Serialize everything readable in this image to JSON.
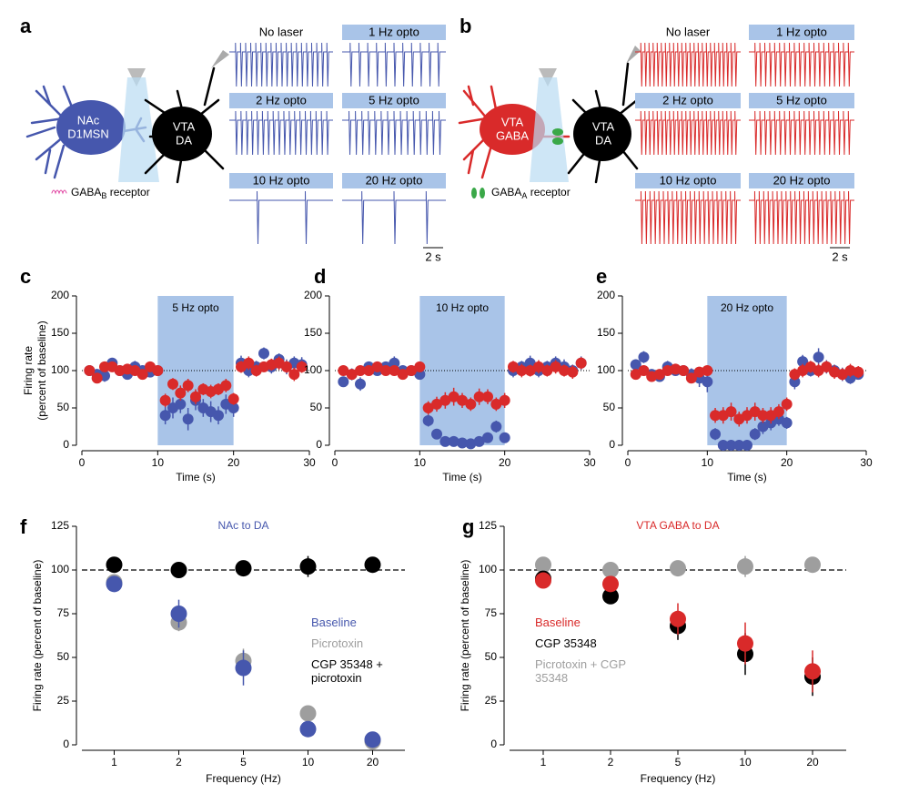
{
  "diagrams": [
    {
      "letter": "a",
      "neurons": [
        [
          "NAc",
          "D1MSN"
        ],
        [
          "VTA",
          "DA"
        ]
      ],
      "receptor": {
        "name": "GABA",
        "sub": "B",
        "suffix": " receptor"
      },
      "traces": [
        "No laser",
        "1 Hz opto",
        "2 Hz opto",
        "5 Hz opto",
        "10 Hz opto",
        "20 Hz opto"
      ],
      "scale_bar": "2 s"
    },
    {
      "letter": "b",
      "neurons": [
        [
          "VTA",
          "GABA"
        ],
        [
          "VTA",
          "DA"
        ]
      ],
      "receptor": {
        "name": "GABA",
        "sub": "A",
        "suffix": " receptor"
      },
      "traces": [
        "No laser",
        "1 Hz opto",
        "2 Hz opto",
        "5 Hz opto",
        "10 Hz opto",
        "20 Hz opto"
      ],
      "scale_bar": "2 s"
    }
  ],
  "chart_data": [
    {
      "type": "scatter",
      "panel": "c",
      "shade": [
        10,
        20
      ],
      "shade_label": "5 Hz opto",
      "hline": 100,
      "ylabel": [
        "Firing rate",
        "(percent of baseline)"
      ],
      "xlabel": "Time (s)",
      "xlim": [
        0,
        30
      ],
      "xticks": [
        0,
        10,
        20,
        30
      ],
      "ylim": [
        0,
        200
      ],
      "yticks": [
        0,
        50,
        100,
        150,
        200
      ],
      "x": [
        1,
        2,
        3,
        4,
        5,
        6,
        7,
        8,
        9,
        10,
        11,
        12,
        13,
        14,
        15,
        16,
        17,
        18,
        19,
        20,
        21,
        22,
        23,
        24,
        25,
        26,
        27,
        28,
        29
      ],
      "series": [
        {
          "color": "#4657ad",
          "values": [
            100,
            95,
            93,
            110,
            100,
            95,
            105,
            100,
            98,
            100,
            40,
            50,
            55,
            35,
            60,
            50,
            45,
            40,
            55,
            50,
            110,
            100,
            105,
            123,
            105,
            115,
            105,
            110,
            108
          ],
          "errors": [
            5,
            6,
            8,
            7,
            5,
            6,
            8,
            6,
            5,
            6,
            12,
            14,
            12,
            15,
            13,
            12,
            14,
            12,
            13,
            12,
            10,
            9,
            8,
            8,
            9,
            8,
            10,
            9,
            10
          ]
        },
        {
          "color": "#d92a2a",
          "values": [
            100,
            90,
            105,
            105,
            100,
            102,
            100,
            95,
            105,
            100,
            60,
            82,
            70,
            80,
            65,
            75,
            72,
            75,
            80,
            62,
            105,
            110,
            100,
            105,
            108,
            110,
            105,
            95,
            105
          ],
          "errors": [
            5,
            5,
            6,
            5,
            6,
            5,
            5,
            6,
            5,
            5,
            9,
            8,
            10,
            9,
            10,
            8,
            9,
            8,
            9,
            8,
            8,
            9,
            8,
            7,
            8,
            9,
            8,
            9,
            8
          ]
        }
      ]
    },
    {
      "type": "scatter",
      "panel": "d",
      "shade": [
        10,
        20
      ],
      "shade_label": "10 Hz opto",
      "hline": 100,
      "xlabel": "Time (s)",
      "xlim": [
        0,
        30
      ],
      "xticks": [
        0,
        10,
        20,
        30
      ],
      "ylim": [
        0,
        200
      ],
      "yticks": [
        0,
        50,
        100,
        150,
        200
      ],
      "x": [
        1,
        2,
        3,
        4,
        5,
        6,
        7,
        8,
        9,
        10,
        11,
        12,
        13,
        14,
        15,
        16,
        17,
        18,
        19,
        20,
        21,
        22,
        23,
        24,
        25,
        26,
        27,
        28,
        29
      ],
      "series": [
        {
          "color": "#4657ad",
          "values": [
            85,
            95,
            82,
            105,
            100,
            105,
            110,
            100,
            100,
            95,
            33,
            15,
            5,
            5,
            3,
            2,
            5,
            10,
            25,
            10,
            100,
            105,
            110,
            100,
            105,
            110,
            105,
            100,
            110
          ],
          "errors": [
            6,
            8,
            9,
            6,
            5,
            7,
            9,
            6,
            5,
            6,
            8,
            6,
            3,
            3,
            2,
            2,
            3,
            5,
            8,
            5,
            9,
            8,
            10,
            9,
            8,
            9,
            10,
            8,
            9
          ]
        },
        {
          "color": "#d92a2a",
          "values": [
            100,
            95,
            100,
            100,
            105,
            100,
            100,
            95,
            100,
            105,
            50,
            55,
            60,
            65,
            60,
            55,
            65,
            65,
            55,
            60,
            105,
            100,
            100,
            105,
            100,
            105,
            100,
            98,
            110
          ],
          "errors": [
            5,
            6,
            5,
            5,
            6,
            5,
            5,
            6,
            5,
            6,
            9,
            10,
            11,
            12,
            10,
            9,
            11,
            10,
            9,
            10,
            8,
            9,
            8,
            9,
            8,
            9,
            8,
            9,
            8
          ]
        }
      ]
    },
    {
      "type": "scatter",
      "panel": "e",
      "shade": [
        10,
        20
      ],
      "shade_label": "20 Hz opto",
      "hline": 100,
      "xlabel": "Time (s)",
      "xlim": [
        0,
        30
      ],
      "xticks": [
        0,
        10,
        20,
        30
      ],
      "ylim": [
        0,
        200
      ],
      "yticks": [
        0,
        50,
        100,
        150,
        200
      ],
      "x": [
        1,
        2,
        3,
        4,
        5,
        6,
        7,
        8,
        9,
        10,
        11,
        12,
        13,
        14,
        15,
        16,
        17,
        18,
        19,
        20,
        21,
        22,
        23,
        24,
        25,
        26,
        27,
        28,
        29
      ],
      "series": [
        {
          "color": "#4657ad",
          "values": [
            108,
            118,
            95,
            92,
            105,
            100,
            100,
            95,
            90,
            85,
            15,
            0,
            0,
            0,
            0,
            15,
            25,
            30,
            35,
            30,
            85,
            112,
            100,
            118,
            105,
            100,
            95,
            90,
            95
          ],
          "errors": [
            7,
            8,
            6,
            7,
            8,
            6,
            7,
            8,
            12,
            14,
            8,
            1,
            1,
            1,
            1,
            8,
            10,
            10,
            9,
            8,
            10,
            9,
            8,
            12,
            9,
            8,
            9,
            8,
            7
          ]
        },
        {
          "color": "#d92a2a",
          "values": [
            95,
            100,
            92,
            95,
            100,
            102,
            100,
            90,
            98,
            100,
            40,
            40,
            45,
            35,
            40,
            45,
            40,
            40,
            45,
            55,
            95,
            100,
            105,
            100,
            105,
            98,
            95,
            100,
            98
          ],
          "errors": [
            5,
            6,
            5,
            5,
            6,
            5,
            5,
            6,
            5,
            6,
            10,
            11,
            12,
            10,
            11,
            12,
            10,
            11,
            10,
            9,
            8,
            9,
            8,
            9,
            8,
            9,
            8,
            9,
            8
          ]
        }
      ]
    },
    {
      "type": "dot",
      "panel": "f",
      "title": "NAc to DA",
      "title_color": "#4657ad",
      "hline": 100,
      "ylabel": "Firing rate (percent of baseline)",
      "xlabel": "Frequency (Hz)",
      "categories": [
        "1",
        "2",
        "5",
        "10",
        "20"
      ],
      "ylim": [
        0,
        125
      ],
      "yticks": [
        0,
        25,
        50,
        75,
        100,
        125
      ],
      "series": [
        {
          "name": "Baseline",
          "color": "#4657ad",
          "values": [
            92,
            75,
            44,
            9,
            3
          ],
          "errors": [
            3,
            8,
            10,
            2,
            1
          ]
        },
        {
          "name": "Picrotoxin",
          "color": "#9e9e9e",
          "values": [
            93,
            70,
            48,
            18,
            2
          ],
          "errors": [
            2,
            5,
            7,
            3,
            1
          ]
        },
        {
          "name": "CGP 35348 + picrotoxin",
          "color": "#000000",
          "values": [
            103,
            100,
            101,
            102,
            103
          ],
          "errors": [
            3,
            2,
            3,
            6,
            4
          ]
        }
      ]
    },
    {
      "type": "dot",
      "panel": "g",
      "title": "VTA GABA to DA",
      "title_color": "#d92a2a",
      "hline": 100,
      "ylabel": "Firing rate (percent of baseline)",
      "xlabel": "Frequency (Hz)",
      "categories": [
        "1",
        "2",
        "5",
        "10",
        "20"
      ],
      "ylim": [
        0,
        125
      ],
      "yticks": [
        0,
        25,
        50,
        75,
        100,
        125
      ],
      "series": [
        {
          "name": "Baseline",
          "color": "#d92a2a",
          "values": [
            94,
            92,
            72,
            58,
            42
          ],
          "errors": [
            3,
            4,
            9,
            12,
            12
          ]
        },
        {
          "name": "CGP 35348",
          "color": "#000000",
          "values": [
            95,
            85,
            68,
            52,
            39
          ],
          "errors": [
            3,
            4,
            8,
            12,
            11
          ]
        },
        {
          "name": "Picrotoxin + CGP 35348",
          "color": "#9e9e9e",
          "values": [
            103,
            100,
            101,
            102,
            103
          ],
          "errors": [
            3,
            3,
            3,
            6,
            3
          ]
        }
      ]
    }
  ]
}
